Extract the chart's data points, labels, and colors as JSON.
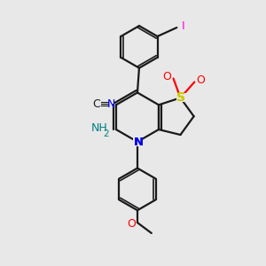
{
  "bg_color": "#e8e8e8",
  "bond_color": "#1a1a1a",
  "atom_colors": {
    "N": "#0000ee",
    "S": "#cccc00",
    "O": "#ff0000",
    "I": "#ff00ff",
    "NH2": "#008080",
    "C": "#1a1a1a"
  },
  "figsize": [
    3.0,
    3.0
  ],
  "dpi": 100
}
